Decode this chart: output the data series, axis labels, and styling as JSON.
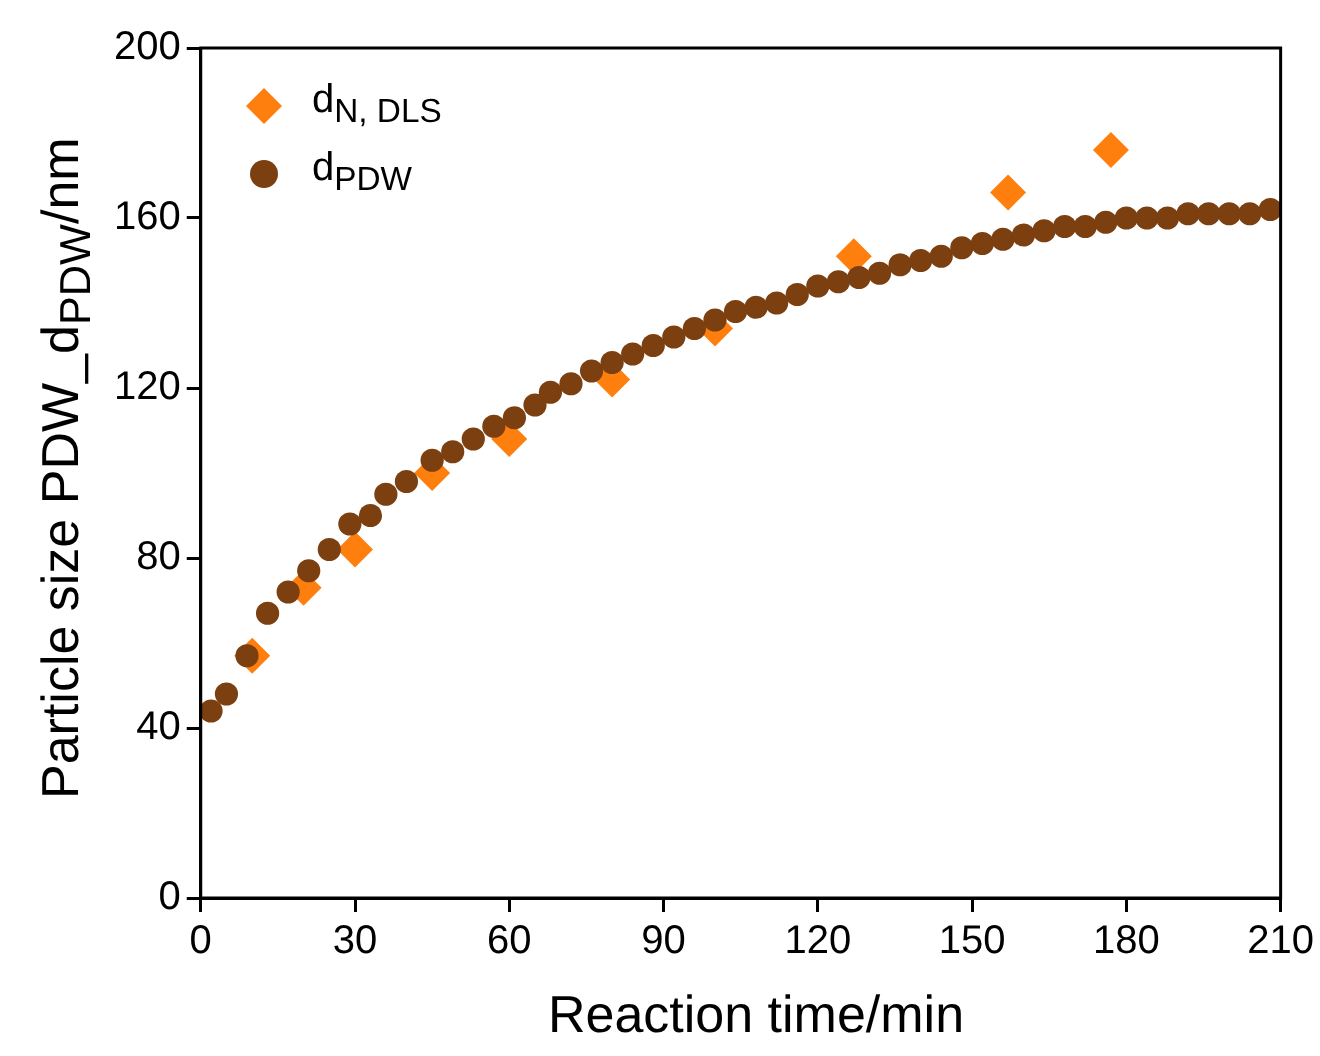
{
  "chart_data": {
    "type": "scatter",
    "xlabel": "Reaction time/min",
    "ylabel": "Particle size PDW_d$_{PDW}$/nm",
    "xlim": [
      0,
      210
    ],
    "xticks": [
      0,
      30,
      60,
      90,
      120,
      150,
      180,
      210
    ],
    "ylim": [
      0,
      200
    ],
    "yticks": [
      0,
      40,
      80,
      120,
      160,
      200
    ],
    "grid": false,
    "legend": "top left",
    "series": [
      {
        "name": "d$_{N, DLS}$",
        "color": "#ff7f0e",
        "marker": "diamond",
        "x": [
          10,
          20,
          30,
          45,
          60,
          80,
          100,
          127,
          157,
          177
        ],
        "values": [
          57,
          73,
          82,
          100,
          108,
          122,
          134,
          151,
          166,
          176
        ]
      },
      {
        "name": "d$_{PDW}$",
        "color": "#7b3f10",
        "marker": "circle",
        "x": [
          2,
          5,
          9,
          13,
          17,
          21,
          25,
          29,
          33,
          36,
          40,
          45,
          49,
          53,
          57,
          61,
          65,
          68,
          72,
          76,
          80,
          84,
          88,
          92,
          96,
          100,
          104,
          108,
          112,
          116,
          120,
          124,
          128,
          132,
          136,
          140,
          144,
          148,
          152,
          156,
          160,
          164,
          168,
          172,
          176,
          180,
          184,
          188,
          192,
          196,
          200,
          204,
          208
        ],
        "values": [
          44,
          48,
          57,
          67,
          72,
          77,
          82,
          88,
          90,
          95,
          98,
          103,
          105,
          108,
          111,
          113,
          116,
          119,
          121,
          124,
          126,
          128,
          130,
          132,
          134,
          136,
          138,
          139,
          140,
          142,
          144,
          145,
          146,
          147,
          149,
          150,
          151,
          153,
          154,
          155,
          156,
          157,
          158,
          158,
          159,
          160,
          160,
          160,
          161,
          161,
          161,
          161,
          162
        ]
      }
    ]
  }
}
